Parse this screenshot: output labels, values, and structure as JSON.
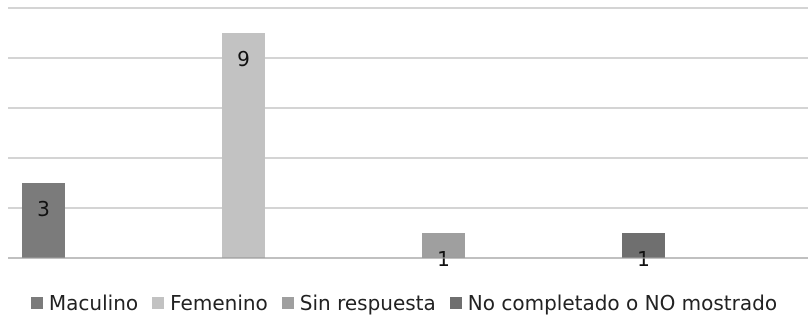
{
  "chart_data": {
    "type": "bar",
    "categories": [
      "Maculino",
      "Femenino",
      "Sin respuesta",
      "No completado o NO mostrado"
    ],
    "values": [
      3,
      9,
      1,
      1
    ],
    "data_labels": [
      "3",
      "9",
      "1",
      "1"
    ],
    "colors": [
      "#7b7b7b",
      "#c2c2c2",
      "#9f9f9f",
      "#6f6f6f"
    ],
    "title": "",
    "xlabel": "",
    "ylabel": "",
    "ylim": [
      0,
      10
    ],
    "grid": true,
    "legend_position": "bottom",
    "legend": [
      {
        "label": "Maculino",
        "color": "#7b7b7b"
      },
      {
        "label": "Femenino",
        "color": "#c2c2c2"
      },
      {
        "label": "Sin respuesta",
        "color": "#9f9f9f"
      },
      {
        "label": "No completado o NO mostrado",
        "color": "#6f6f6f"
      }
    ]
  }
}
